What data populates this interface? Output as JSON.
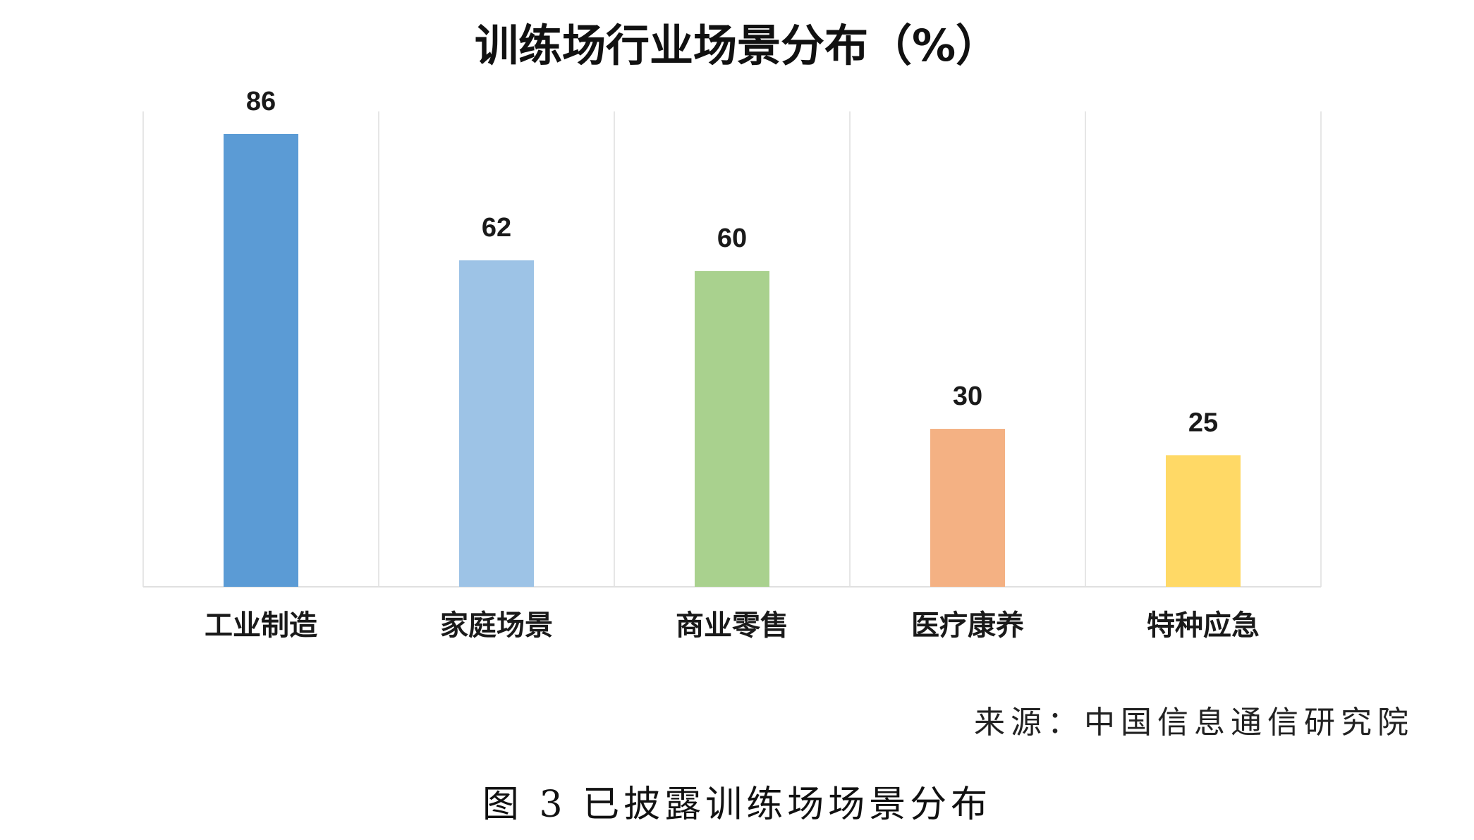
{
  "chart_data": {
    "type": "bar",
    "title": "训练场行业场景分布（%）",
    "categories": [
      "工业制造",
      "家庭场景",
      "商业零售",
      "医疗康养",
      "特种应急"
    ],
    "values": [
      86,
      62,
      60,
      30,
      25
    ],
    "colors": [
      "#5B9BD5",
      "#9DC3E6",
      "#A9D18E",
      "#F4B183",
      "#FFD966"
    ],
    "ylim": [
      0,
      90
    ],
    "grid": "vertical separators between categories",
    "legend": "none",
    "data_labels": true
  },
  "source": "来源：中国信息通信研究院",
  "caption": "图 3 已披露训练场场景分布"
}
